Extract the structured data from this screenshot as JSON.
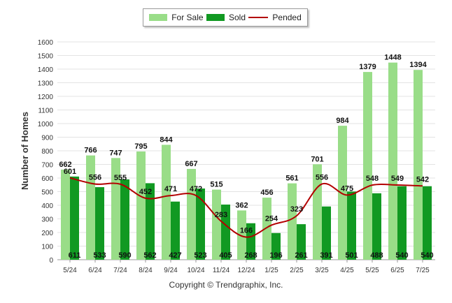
{
  "chart_data": {
    "type": "bar",
    "ylabel": "Number of Homes",
    "xlabel": "",
    "ylim": [
      0,
      1600
    ],
    "y_ticks": [
      0,
      100,
      200,
      300,
      400,
      500,
      600,
      700,
      800,
      900,
      1000,
      1100,
      1200,
      1300,
      1400,
      1500,
      1600
    ],
    "grid": true,
    "legend_position": "top-center",
    "categories": [
      "5/24",
      "6/24",
      "7/24",
      "8/24",
      "9/24",
      "10/24",
      "11/24",
      "12/24",
      "1/25",
      "2/25",
      "3/25",
      "4/25",
      "5/25",
      "6/25",
      "7/25"
    ],
    "series": [
      {
        "name": "For Sale",
        "type": "bar",
        "color": "#99dd88",
        "values": [
          662,
          766,
          747,
          795,
          844,
          667,
          515,
          362,
          456,
          561,
          701,
          984,
          1379,
          1448,
          1394
        ]
      },
      {
        "name": "Sold",
        "type": "bar",
        "color": "#119922",
        "values": [
          611,
          533,
          590,
          562,
          427,
          523,
          405,
          268,
          196,
          261,
          391,
          501,
          488,
          540,
          540
        ]
      },
      {
        "name": "Pended",
        "type": "line",
        "color": "#b30000",
        "values": [
          601,
          556,
          555,
          452,
          471,
          472,
          283,
          166,
          254,
          323,
          556,
          475,
          548,
          549,
          542
        ]
      }
    ]
  },
  "footer": {
    "copyright": "Copyright © Trendgraphix, Inc."
  }
}
